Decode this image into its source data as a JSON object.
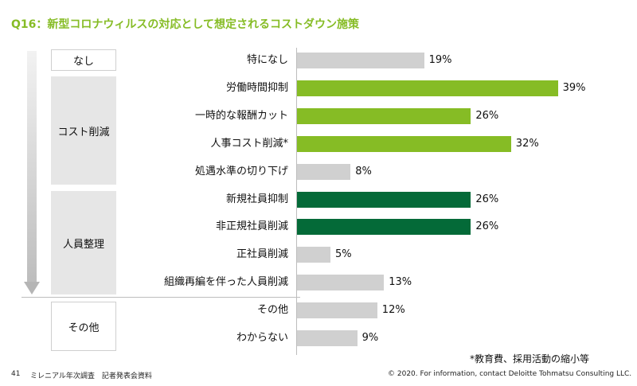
{
  "title": "Q16：新型コロナウィルスの対応として想定されるコストダウン施策",
  "groups": [
    {
      "label": "なし"
    },
    {
      "label": "コスト削減"
    },
    {
      "label": "人員整理"
    },
    {
      "label": "その他"
    }
  ],
  "chart_data": {
    "type": "bar",
    "orientation": "horizontal",
    "title": "",
    "xlabel": "",
    "ylabel": "",
    "xlim": [
      0,
      40
    ],
    "categories": [
      "特になし",
      "労働時間抑制",
      "一時的な報酬カット",
      "人事コスト削減*",
      "処遇水準の切り下げ",
      "新規社員抑制",
      "非正規社員削減",
      "正社員削減",
      "組織再編を伴った人員削減",
      "その他",
      "わからない"
    ],
    "values": [
      19,
      39,
      26,
      32,
      8,
      26,
      26,
      5,
      13,
      12,
      9
    ],
    "value_labels": [
      "19%",
      "39%",
      "26%",
      "32%",
      "8%",
      "26%",
      "26%",
      "5%",
      "13%",
      "12%",
      "9%"
    ],
    "bar_colors": [
      "#d0d0d0",
      "#86bc25",
      "#86bc25",
      "#86bc25",
      "#d0d0d0",
      "#046a38",
      "#046a38",
      "#d0d0d0",
      "#d0d0d0",
      "#d0d0d0",
      "#d0d0d0"
    ],
    "grid": false,
    "legend": "none"
  },
  "footnote": "*教育費、採用活動の縮小等",
  "footer": {
    "page_number": "41",
    "left": "ミレニアル年次調査　記者発表会資料",
    "right": "© 2020. For information, contact Deloitte Tohmatsu Consulting LLC."
  },
  "colors": {
    "title": "#86bc25",
    "light_green": "#86bc25",
    "dark_green": "#046a38",
    "gray": "#d0d0d0"
  }
}
